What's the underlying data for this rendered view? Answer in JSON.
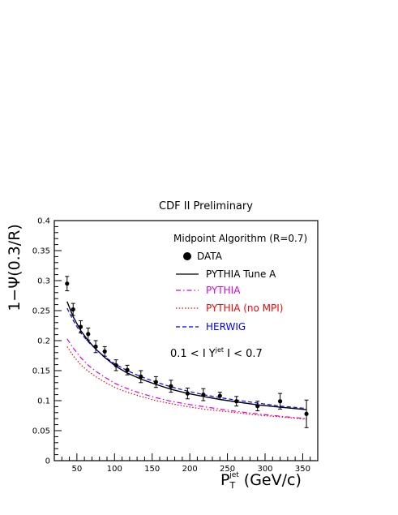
{
  "chart_data": {
    "type": "line",
    "title": "CDF II Preliminary",
    "xlabel": "P",
    "xlabel_sub": "T",
    "xlabel_sup": "jet",
    "xlabel_unit": "(GeV/c)",
    "ylabel": "1−Ψ(0.3/R)",
    "xlim": [
      20,
      370
    ],
    "ylim": [
      0,
      0.4
    ],
    "x_ticks": [
      50,
      100,
      150,
      200,
      250,
      300,
      350
    ],
    "y_ticks": [
      0,
      0.05,
      0.1,
      0.15,
      0.2,
      0.25,
      0.3,
      0.35,
      0.4
    ],
    "y_tick_labels": [
      "0",
      "0.05",
      "0.1",
      "0.15",
      "0.2",
      "0.25",
      "0.3",
      "0.35",
      "0.4"
    ],
    "grid": false,
    "legend_position": "top-right",
    "annotations": {
      "algorithm": "Midpoint Algorithm (R=0.7)",
      "rapidity_cut": "0.1 < I Y",
      "rapidity_cut_sup": "jet",
      "rapidity_cut_end": " I < 0.7"
    },
    "series": [
      {
        "name": "DATA",
        "style": "markers",
        "color": "#000000",
        "points": [
          {
            "x": 37,
            "y": 0.295,
            "err": 0.012
          },
          {
            "x": 45,
            "y": 0.252,
            "err": 0.01
          },
          {
            "x": 55,
            "y": 0.223,
            "err": 0.01
          },
          {
            "x": 65,
            "y": 0.211,
            "err": 0.01
          },
          {
            "x": 75,
            "y": 0.19,
            "err": 0.01
          },
          {
            "x": 87,
            "y": 0.182,
            "err": 0.008
          },
          {
            "x": 102,
            "y": 0.159,
            "err": 0.009
          },
          {
            "x": 117,
            "y": 0.151,
            "err": 0.008
          },
          {
            "x": 135,
            "y": 0.14,
            "err": 0.01
          },
          {
            "x": 155,
            "y": 0.131,
            "err": 0.009
          },
          {
            "x": 175,
            "y": 0.124,
            "err": 0.01
          },
          {
            "x": 197,
            "y": 0.112,
            "err": 0.009
          },
          {
            "x": 218,
            "y": 0.11,
            "err": 0.01
          },
          {
            "x": 240,
            "y": 0.108,
            "err": 0.006
          },
          {
            "x": 262,
            "y": 0.099,
            "err": 0.008
          },
          {
            "x": 290,
            "y": 0.091,
            "err": 0.008
          },
          {
            "x": 320,
            "y": 0.099,
            "err": 0.013
          },
          {
            "x": 355,
            "y": 0.078,
            "err": 0.023
          }
        ]
      },
      {
        "name": "PYTHIA Tune A",
        "style": "solid",
        "color": "#000000",
        "x": [
          37,
          45,
          55,
          65,
          75,
          87,
          102,
          117,
          135,
          155,
          175,
          197,
          218,
          240,
          262,
          290,
          320,
          355
        ],
        "y": [
          0.265,
          0.24,
          0.217,
          0.2,
          0.186,
          0.172,
          0.157,
          0.146,
          0.136,
          0.127,
          0.119,
          0.112,
          0.107,
          0.102,
          0.098,
          0.093,
          0.089,
          0.085
        ]
      },
      {
        "name": "PYTHIA",
        "style": "dashdot",
        "color": "#e000e0",
        "x": [
          37,
          45,
          55,
          65,
          75,
          87,
          102,
          117,
          135,
          155,
          175,
          197,
          218,
          240,
          262,
          290,
          320,
          355
        ],
        "y": [
          0.203,
          0.188,
          0.172,
          0.159,
          0.149,
          0.139,
          0.128,
          0.12,
          0.112,
          0.105,
          0.099,
          0.094,
          0.09,
          0.086,
          0.082,
          0.078,
          0.074,
          0.07
        ]
      },
      {
        "name": "PYTHIA (no MPI)",
        "style": "dotted",
        "color": "#ff0000",
        "x": [
          37,
          45,
          55,
          65,
          75,
          87,
          102,
          117,
          135,
          155,
          175,
          197,
          218,
          240,
          262,
          290,
          320,
          355
        ],
        "y": [
          0.19,
          0.175,
          0.16,
          0.149,
          0.14,
          0.131,
          0.121,
          0.114,
          0.107,
          0.1,
          0.095,
          0.09,
          0.086,
          0.083,
          0.08,
          0.076,
          0.073,
          0.069
        ]
      },
      {
        "name": "HERWIG",
        "style": "dashed",
        "color": "#0000ff",
        "x": [
          37,
          45,
          55,
          65,
          75,
          87,
          102,
          117,
          135,
          155,
          175,
          197,
          218,
          240,
          262,
          290,
          320,
          355
        ],
        "y": [
          0.254,
          0.234,
          0.213,
          0.198,
          0.186,
          0.173,
          0.16,
          0.15,
          0.14,
          0.131,
          0.123,
          0.116,
          0.11,
          0.105,
          0.101,
          0.096,
          0.091,
          0.087
        ]
      }
    ]
  }
}
